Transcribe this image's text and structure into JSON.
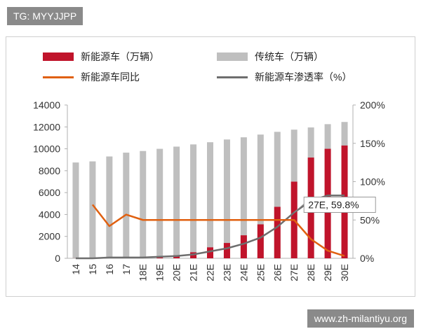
{
  "watermark_top": "TG: MYYJJPP",
  "watermark_bottom": "www.zh-milantiyu.org",
  "chart_data": {
    "type": "bar",
    "categories": [
      "14",
      "15",
      "16",
      "17",
      "18E",
      "19E",
      "20E",
      "21E",
      "22E",
      "23E",
      "24E",
      "25E",
      "26E",
      "27E",
      "28E",
      "29E",
      "30E"
    ],
    "series": [
      {
        "name": "新能源车（万辆）",
        "kind": "stacked-bar",
        "axis": "left",
        "color": "#c0142b",
        "values": [
          5,
          30,
          50,
          80,
          120,
          180,
          280,
          550,
          1000,
          1400,
          2100,
          3100,
          4700,
          7000,
          9200,
          10000,
          10300
        ]
      },
      {
        "name": "传统车（万辆）",
        "kind": "bar-total",
        "axis": "left",
        "color": "#bfbfbf",
        "values": [
          8750,
          8850,
          9300,
          9650,
          9800,
          10000,
          10200,
          10400,
          10600,
          10850,
          11050,
          11300,
          11550,
          11750,
          11950,
          12250,
          12450
        ]
      },
      {
        "name": "新能源车同比",
        "kind": "line",
        "axis": "right",
        "color": "#e06010",
        "values": [
          null,
          70,
          42,
          57,
          50,
          50,
          50,
          50,
          50,
          50,
          50,
          50,
          50,
          50,
          25,
          10,
          3
        ]
      },
      {
        "name": "新能源车渗透率（%）",
        "kind": "line",
        "axis": "right",
        "color": "#6e6e6e",
        "values": [
          0,
          0,
          1,
          1,
          1,
          2,
          3,
          5,
          9,
          13,
          19,
          27,
          41,
          59.8,
          75,
          82,
          82
        ]
      }
    ],
    "ylim_left": [
      0,
      14000
    ],
    "yticks_left": [
      "0",
      "2000",
      "4000",
      "6000",
      "8000",
      "10000",
      "12000",
      "14000"
    ],
    "ylim_right": [
      0,
      200
    ],
    "yticks_right": [
      "0%",
      "50%",
      "100%",
      "150%",
      "200%"
    ],
    "annotation": {
      "text": "27E, 59.8%",
      "category": "27E"
    },
    "grid": false,
    "legend_position": "top"
  }
}
